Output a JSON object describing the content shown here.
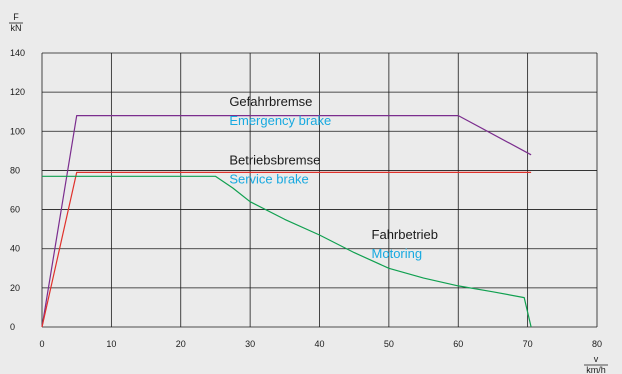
{
  "chart_data": {
    "type": "line",
    "title": "",
    "ylabel": {
      "numerator": "F",
      "denominator": "kN"
    },
    "xlabel": {
      "numerator": "v",
      "denominator": "km/h"
    },
    "xlim": [
      0,
      80
    ],
    "ylim": [
      0,
      140
    ],
    "x_ticks": [
      0,
      10,
      20,
      30,
      40,
      50,
      60,
      70,
      80
    ],
    "y_ticks": [
      0,
      20,
      40,
      60,
      80,
      100,
      120,
      140
    ],
    "grid": true,
    "series": [
      {
        "name": "Gefahrbremse",
        "name_en": "Emergency brake",
        "color": "#7b2d8e",
        "points": [
          [
            0,
            0
          ],
          [
            5,
            108
          ],
          [
            60,
            108
          ],
          [
            70.5,
            88
          ]
        ]
      },
      {
        "name": "Betriebsbremse",
        "name_en": "Service brake",
        "color": "#e0312b",
        "points": [
          [
            0,
            0
          ],
          [
            5,
            79
          ],
          [
            70.5,
            79
          ]
        ]
      },
      {
        "name": "Fahrbetrieb",
        "name_en": "Motoring",
        "color": "#10a050",
        "points": [
          [
            0,
            77
          ],
          [
            25,
            77
          ],
          [
            27.5,
            71
          ],
          [
            30,
            64
          ],
          [
            35,
            55
          ],
          [
            40,
            47
          ],
          [
            45,
            38
          ],
          [
            50,
            30
          ],
          [
            55,
            25
          ],
          [
            60,
            21
          ],
          [
            65,
            18
          ],
          [
            69.5,
            15
          ],
          [
            70.5,
            0
          ]
        ]
      }
    ],
    "annotations": [
      {
        "series": 0,
        "x": 27,
        "y": 113
      },
      {
        "series": 1,
        "x": 27,
        "y": 83
      },
      {
        "series": 2,
        "x": 47.5,
        "y": 45
      }
    ]
  },
  "colors": {
    "background": "#ebebeb",
    "grid": "#1a1a1a",
    "english_label": "#17a9e0"
  }
}
